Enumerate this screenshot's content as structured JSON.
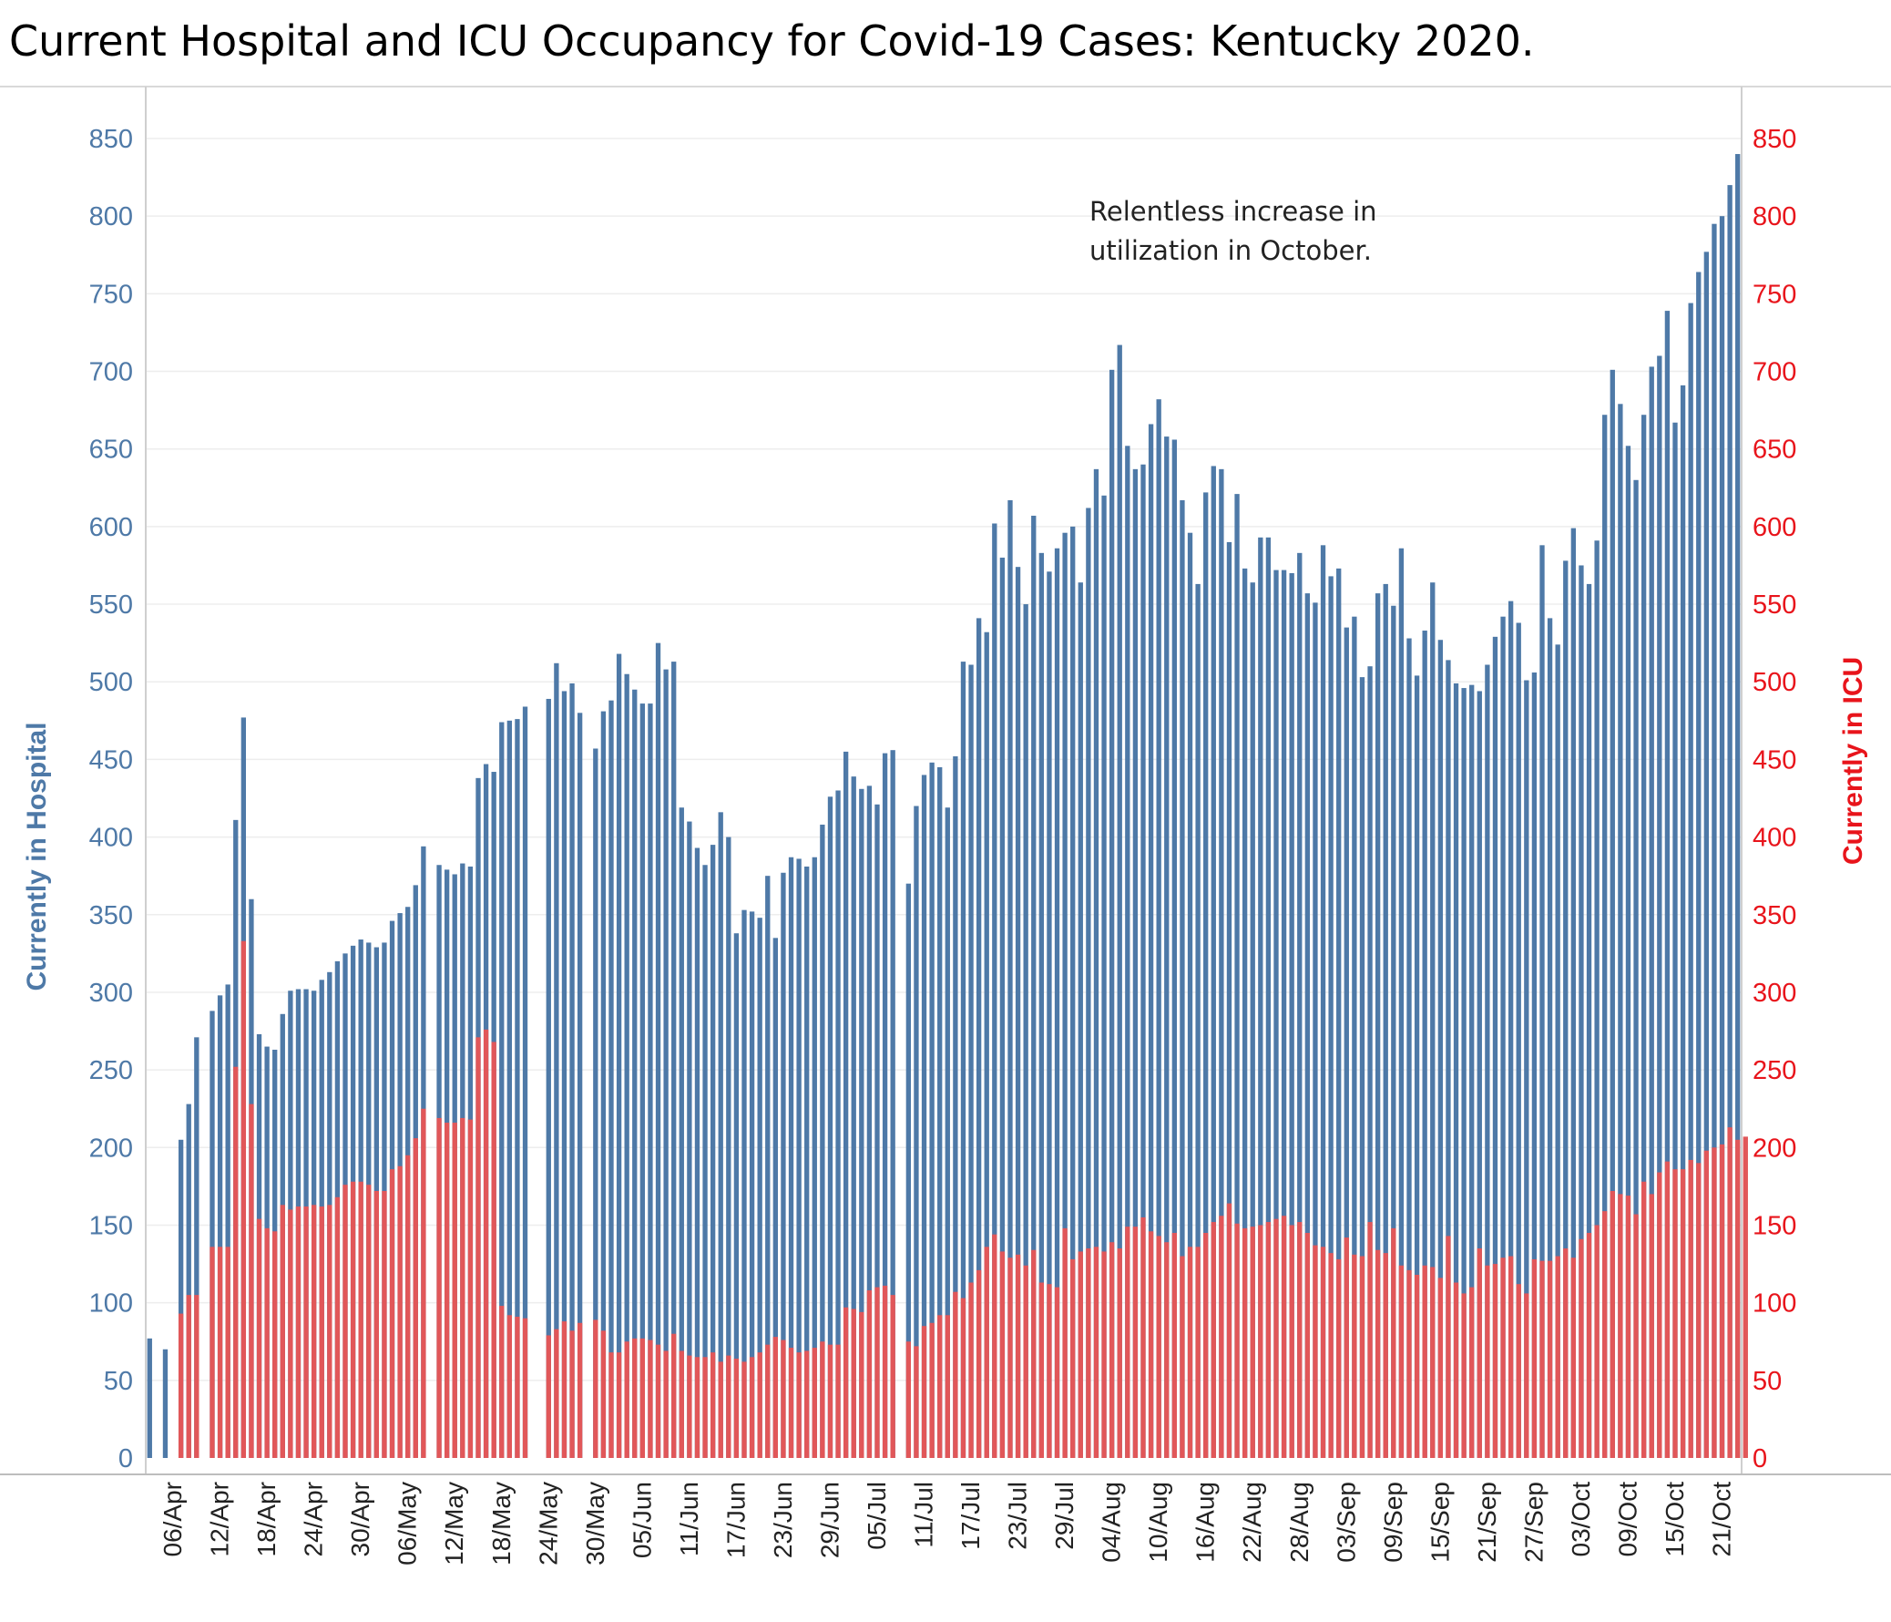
{
  "title": "Current Hospital and ICU Occupancy for Covid-19 Cases:  Kentucky 2020.",
  "chart_data": {
    "type": "bar",
    "title": "Current Hospital and ICU Occupancy for Covid-19 Cases:  Kentucky 2020.",
    "ylabel_left": "Currently in Hospital",
    "ylabel_right": "Currently in ICU",
    "ylim": [
      0,
      850
    ],
    "yticks": [
      0,
      50,
      100,
      150,
      200,
      250,
      300,
      350,
      400,
      450,
      500,
      550,
      600,
      650,
      700,
      750,
      800,
      850
    ],
    "grid": true,
    "start_date": "2020-04-03",
    "x_tick_labels": [
      "06/Apr",
      "12/Apr",
      "18/Apr",
      "24/Apr",
      "30/Apr",
      "06/May",
      "12/May",
      "18/May",
      "24/May",
      "30/May",
      "05/Jun",
      "11/Jun",
      "17/Jun",
      "23/Jun",
      "29/Jun",
      "05/Jul",
      "11/Jul",
      "17/Jul",
      "23/Jul",
      "29/Jul",
      "04/Aug",
      "10/Aug",
      "16/Aug",
      "22/Aug",
      "28/Aug",
      "03/Sep",
      "09/Sep",
      "15/Sep",
      "21/Sep",
      "27/Sep",
      "03/Oct",
      "09/Oct",
      "15/Oct",
      "21/Oct"
    ],
    "colors": {
      "hospital": "#4e79a7",
      "icu": "#e15759",
      "left_axis": "#4e79a7",
      "right_axis": "#e8141b"
    },
    "annotation": [
      "Relentless increase in",
      "utilization in October."
    ],
    "series": [
      {
        "name": "Currently in Hospital",
        "axis": "left",
        "values": [
          77,
          null,
          70,
          null,
          205,
          228,
          271,
          null,
          288,
          298,
          305,
          411,
          477,
          360,
          273,
          265,
          263,
          286,
          301,
          302,
          302,
          301,
          308,
          313,
          320,
          325,
          330,
          334,
          332,
          329,
          332,
          346,
          351,
          355,
          369,
          394,
          null,
          382,
          379,
          376,
          383,
          381,
          438,
          447,
          442,
          474,
          475,
          476,
          484,
          null,
          null,
          489,
          512,
          494,
          499,
          480,
          null,
          457,
          481,
          488,
          518,
          505,
          495,
          486,
          486,
          525,
          508,
          513,
          419,
          410,
          393,
          382,
          395,
          416,
          400,
          338,
          353,
          352,
          348,
          375,
          335,
          377,
          387,
          386,
          381,
          387,
          408,
          426,
          430,
          455,
          439,
          431,
          433,
          421,
          454,
          456,
          null,
          370,
          420,
          440,
          448,
          445,
          419,
          452,
          513,
          511,
          541,
          532,
          602,
          580,
          617,
          574,
          550,
          607,
          583,
          571,
          586,
          596,
          600,
          564,
          612,
          637,
          620,
          701,
          717,
          652,
          637,
          640,
          666,
          682,
          658,
          656,
          617,
          596,
          563,
          622,
          639,
          637,
          590,
          621,
          573,
          564,
          593,
          593,
          572,
          572,
          570,
          583,
          557,
          551,
          588,
          568,
          573,
          535,
          542,
          503,
          510,
          557,
          563,
          549,
          586,
          528,
          504,
          533,
          564,
          527,
          514,
          499,
          496,
          498,
          494,
          511,
          529,
          542,
          552,
          538,
          501,
          506,
          588,
          541,
          524,
          578,
          599,
          575,
          563,
          591,
          672,
          701,
          679,
          652,
          630,
          672,
          703,
          710,
          739,
          667,
          691,
          744,
          764,
          777,
          795,
          800,
          820,
          840
        ]
      },
      {
        "name": "Currently in ICU",
        "axis": "right",
        "values": [
          null,
          null,
          null,
          null,
          93,
          105,
          105,
          null,
          136,
          136,
          136,
          252,
          333,
          228,
          154,
          148,
          146,
          163,
          160,
          162,
          162,
          163,
          162,
          163,
          168,
          176,
          178,
          178,
          176,
          172,
          172,
          186,
          188,
          195,
          206,
          225,
          null,
          219,
          216,
          216,
          219,
          218,
          271,
          276,
          268,
          98,
          92,
          91,
          90,
          null,
          null,
          79,
          83,
          88,
          82,
          87,
          null,
          89,
          82,
          68,
          68,
          75,
          77,
          77,
          76,
          73,
          69,
          80,
          69,
          66,
          65,
          65,
          68,
          62,
          66,
          64,
          62,
          65,
          68,
          73,
          78,
          76,
          71,
          68,
          69,
          71,
          75,
          73,
          73,
          97,
          96,
          94,
          108,
          110,
          111,
          105,
          null,
          75,
          72,
          85,
          87,
          92,
          92,
          107,
          103,
          113,
          121,
          136,
          144,
          133,
          129,
          131,
          124,
          134,
          113,
          112,
          110,
          148,
          128,
          133,
          135,
          136,
          133,
          139,
          135,
          149,
          149,
          155,
          146,
          143,
          139,
          145,
          130,
          136,
          136,
          145,
          152,
          156,
          164,
          151,
          148,
          149,
          150,
          152,
          154,
          156,
          150,
          152,
          145,
          137,
          136,
          132,
          128,
          142,
          131,
          130,
          152,
          134,
          132,
          148,
          124,
          121,
          118,
          124,
          123,
          116,
          143,
          113,
          106,
          110,
          135,
          124,
          125,
          129,
          130,
          112,
          106,
          128,
          127,
          127,
          130,
          135,
          129,
          141,
          145,
          150,
          159,
          172,
          170,
          169,
          157,
          178,
          170,
          184,
          191,
          186,
          186,
          192,
          190,
          198,
          200,
          202,
          213,
          205,
          207
        ]
      }
    ]
  }
}
